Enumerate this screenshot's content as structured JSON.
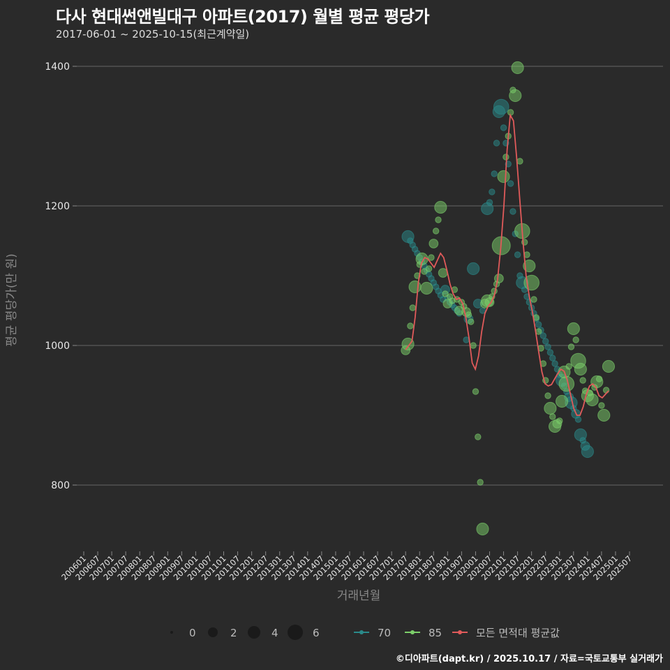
{
  "header": {
    "title": "다사 현대썬앤빌대구 아파트(2017) 월별 평균 평당가",
    "subtitle": "2017-06-01 ~ 2025-10-15(최근계약일)"
  },
  "footer": {
    "credit": "©디아파트(dapt.kr) / 2025.10.17 / 자료=국토교통부 실거래가"
  },
  "colors": {
    "background": "#2a2a2a",
    "grid": "#5a5a5a",
    "s70": "#2a8a8a",
    "s85": "#7ccf6a",
    "avg": "#e05a5a"
  },
  "chart_data": {
    "type": "scatter",
    "title": "다사 현대썬앤빌대구 아파트(2017) 월별 평균 평당가",
    "subtitle": "2017-06-01 ~ 2025-10-15(최근계약일)",
    "xlabel": "거래년월",
    "ylabel": "평균 평당가(만 원)",
    "ylim": [
      700,
      1430
    ],
    "yticks": [
      800,
      1000,
      1200,
      1400
    ],
    "grid": true,
    "xticks": [
      "200601",
      "200607",
      "200701",
      "200707",
      "200801",
      "200807",
      "200901",
      "200907",
      "201001",
      "201007",
      "201101",
      "201107",
      "201201",
      "201207",
      "201301",
      "201307",
      "201401",
      "201407",
      "201501",
      "201507",
      "201601",
      "201607",
      "201701",
      "201707",
      "201801",
      "201807",
      "201901",
      "201907",
      "202001",
      "202007",
      "202101",
      "202107",
      "202201",
      "202207",
      "202301",
      "202307",
      "202401",
      "202407",
      "202501",
      "202507"
    ],
    "legend": {
      "size": {
        "title": "",
        "values": [
          "0",
          "2",
          "4",
          "6"
        ]
      },
      "color": [
        {
          "name": "70",
          "color": "#2a8a8a"
        },
        {
          "name": "85",
          "color": "#7ccf6a"
        },
        {
          "name": "모든 면적대 평균값",
          "color": "#e05a5a"
        }
      ],
      "position": "bottom"
    },
    "series": [
      {
        "name": "70",
        "type": "scatter",
        "points": [
          [
            138,
            1156,
            3
          ],
          [
            139,
            1150,
            1
          ],
          [
            140,
            1144,
            1
          ],
          [
            141,
            1138,
            1
          ],
          [
            142,
            1132,
            1
          ],
          [
            143,
            1126,
            1
          ],
          [
            144,
            1120,
            1
          ],
          [
            145,
            1114,
            1
          ],
          [
            146,
            1108,
            1
          ],
          [
            147,
            1102,
            1
          ],
          [
            148,
            1096,
            1
          ],
          [
            149,
            1090,
            1
          ],
          [
            150,
            1084,
            1
          ],
          [
            151,
            1078,
            1
          ],
          [
            152,
            1072,
            1
          ],
          [
            153,
            1066,
            1
          ],
          [
            154,
            1080,
            2
          ],
          [
            155,
            1068,
            1
          ],
          [
            156,
            1062,
            1
          ],
          [
            157,
            1058,
            1
          ],
          [
            158,
            1054,
            1
          ],
          [
            159,
            1050,
            1
          ],
          [
            160,
            1046,
            1
          ],
          [
            163,
            1008,
            1
          ],
          [
            164,
            1038,
            2
          ],
          [
            166,
            1110,
            3
          ],
          [
            168,
            1060,
            2
          ],
          [
            170,
            1050,
            1
          ],
          [
            172,
            1196,
            3
          ],
          [
            173,
            1205,
            1
          ],
          [
            174,
            1220,
            1
          ],
          [
            175,
            1246,
            1
          ],
          [
            176,
            1290,
            1
          ],
          [
            177,
            1335,
            3
          ],
          [
            178,
            1342,
            4
          ],
          [
            179,
            1312,
            1
          ],
          [
            180,
            1290,
            1
          ],
          [
            181,
            1260,
            1
          ],
          [
            182,
            1232,
            1
          ],
          [
            183,
            1192,
            1
          ],
          [
            184,
            1160,
            1
          ],
          [
            185,
            1130,
            1
          ],
          [
            186,
            1100,
            1
          ],
          [
            187,
            1090,
            3
          ],
          [
            188,
            1080,
            1
          ],
          [
            189,
            1070,
            1
          ],
          [
            190,
            1062,
            1
          ],
          [
            191,
            1054,
            1
          ],
          [
            192,
            1046,
            1
          ],
          [
            193,
            1038,
            1
          ],
          [
            194,
            1030,
            1
          ],
          [
            195,
            1022,
            1
          ],
          [
            196,
            1014,
            1
          ],
          [
            197,
            1006,
            1
          ],
          [
            198,
            998,
            1
          ],
          [
            199,
            990,
            1
          ],
          [
            200,
            982,
            1
          ],
          [
            201,
            974,
            1
          ],
          [
            202,
            966,
            1
          ],
          [
            203,
            958,
            1
          ],
          [
            204,
            950,
            3
          ],
          [
            205,
            942,
            1
          ],
          [
            206,
            934,
            1
          ],
          [
            207,
            926,
            2
          ],
          [
            208,
            918,
            3
          ],
          [
            209,
            910,
            1
          ],
          [
            210,
            902,
            2
          ],
          [
            211,
            894,
            1
          ],
          [
            212,
            872,
            3
          ],
          [
            213,
            864,
            1
          ],
          [
            214,
            856,
            2
          ],
          [
            215,
            848,
            3
          ]
        ]
      },
      {
        "name": "85",
        "type": "scatter",
        "points": [
          [
            137,
            993,
            2
          ],
          [
            138,
            1002,
            3
          ],
          [
            139,
            1028,
            1
          ],
          [
            140,
            1054,
            1
          ],
          [
            141,
            1084,
            3
          ],
          [
            142,
            1100,
            1
          ],
          [
            143,
            1116,
            1
          ],
          [
            144,
            1124,
            3
          ],
          [
            145,
            1106,
            1
          ],
          [
            146,
            1082,
            3
          ],
          [
            147,
            1110,
            1
          ],
          [
            148,
            1126,
            1
          ],
          [
            149,
            1146,
            2
          ],
          [
            150,
            1164,
            1
          ],
          [
            151,
            1180,
            1
          ],
          [
            152,
            1198,
            3
          ],
          [
            153,
            1104,
            2
          ],
          [
            154,
            1074,
            1
          ],
          [
            155,
            1060,
            2
          ],
          [
            156,
            1070,
            1
          ],
          [
            157,
            1064,
            1
          ],
          [
            158,
            1080,
            1
          ],
          [
            159,
            1066,
            1
          ],
          [
            160,
            1050,
            2
          ],
          [
            161,
            1062,
            1
          ],
          [
            162,
            1056,
            1
          ],
          [
            163,
            1048,
            2
          ],
          [
            164,
            1044,
            1
          ],
          [
            165,
            1034,
            1
          ],
          [
            166,
            1000,
            1
          ],
          [
            167,
            934,
            1
          ],
          [
            168,
            869,
            1
          ],
          [
            169,
            804,
            1
          ],
          [
            170,
            737,
            3
          ],
          [
            171,
            1060,
            2
          ],
          [
            172,
            1064,
            3
          ],
          [
            173,
            1062,
            2
          ],
          [
            174,
            1070,
            1
          ],
          [
            175,
            1078,
            1
          ],
          [
            176,
            1088,
            1
          ],
          [
            177,
            1096,
            2
          ],
          [
            178,
            1143,
            5
          ],
          [
            179,
            1242,
            3
          ],
          [
            180,
            1270,
            1
          ],
          [
            181,
            1300,
            1
          ],
          [
            182,
            1334,
            1
          ],
          [
            183,
            1366,
            1
          ],
          [
            184,
            1358,
            3
          ],
          [
            185,
            1398,
            3
          ],
          [
            186,
            1264,
            1
          ],
          [
            187,
            1164,
            4
          ],
          [
            188,
            1148,
            1
          ],
          [
            189,
            1130,
            1
          ],
          [
            190,
            1114,
            3
          ],
          [
            191,
            1090,
            4
          ],
          [
            192,
            1066,
            1
          ],
          [
            193,
            1040,
            1
          ],
          [
            194,
            1020,
            1
          ],
          [
            195,
            996,
            1
          ],
          [
            196,
            974,
            1
          ],
          [
            197,
            950,
            1
          ],
          [
            198,
            928,
            1
          ],
          [
            199,
            910,
            3
          ],
          [
            200,
            898,
            1
          ],
          [
            201,
            884,
            3
          ],
          [
            202,
            888,
            2
          ],
          [
            203,
            892,
            1
          ],
          [
            204,
            920,
            3
          ],
          [
            205,
            962,
            3
          ],
          [
            206,
            945,
            4
          ],
          [
            207,
            970,
            1
          ],
          [
            208,
            998,
            1
          ],
          [
            209,
            1024,
            3
          ],
          [
            210,
            1008,
            1
          ],
          [
            211,
            978,
            4
          ],
          [
            212,
            966,
            3
          ],
          [
            213,
            950,
            1
          ],
          [
            214,
            935,
            1
          ],
          [
            215,
            928,
            3
          ],
          [
            216,
            932,
            1
          ],
          [
            217,
            922,
            3
          ],
          [
            218,
            940,
            1
          ],
          [
            219,
            948,
            3
          ],
          [
            220,
            952,
            1
          ],
          [
            221,
            914,
            1
          ],
          [
            222,
            900,
            3
          ],
          [
            223,
            936,
            1
          ],
          [
            224,
            970,
            3
          ]
        ]
      },
      {
        "name": "모든 면적대 평균값",
        "type": "line",
        "points": [
          [
            137,
            994
          ],
          [
            138,
            1000
          ],
          [
            139,
            1006
          ],
          [
            140,
            1040
          ],
          [
            141,
            1090
          ],
          [
            142,
            1118
          ],
          [
            143,
            1126
          ],
          [
            144,
            1124
          ],
          [
            145,
            1118
          ],
          [
            146,
            1112
          ],
          [
            147,
            1122
          ],
          [
            148,
            1132
          ],
          [
            149,
            1126
          ],
          [
            150,
            1108
          ],
          [
            151,
            1088
          ],
          [
            152,
            1074
          ],
          [
            153,
            1066
          ],
          [
            154,
            1068
          ],
          [
            155,
            1060
          ],
          [
            156,
            1040
          ],
          [
            157,
            1010
          ],
          [
            158,
            975
          ],
          [
            159,
            966
          ],
          [
            160,
            985
          ],
          [
            161,
            1020
          ],
          [
            162,
            1046
          ],
          [
            163,
            1056
          ],
          [
            164,
            1062
          ],
          [
            165,
            1072
          ],
          [
            166,
            1094
          ],
          [
            167,
            1140
          ],
          [
            168,
            1200
          ],
          [
            169,
            1280
          ],
          [
            170,
            1330
          ],
          [
            171,
            1322
          ],
          [
            172,
            1270
          ],
          [
            173,
            1210
          ],
          [
            174,
            1150
          ],
          [
            175,
            1100
          ],
          [
            176,
            1070
          ],
          [
            177,
            1048
          ],
          [
            178,
            1020
          ],
          [
            179,
            990
          ],
          [
            180,
            962
          ],
          [
            181,
            945
          ],
          [
            182,
            942
          ],
          [
            183,
            944
          ],
          [
            184,
            952
          ],
          [
            185,
            960
          ],
          [
            186,
            966
          ],
          [
            187,
            963
          ],
          [
            188,
            950
          ],
          [
            189,
            930
          ],
          [
            190,
            910
          ],
          [
            191,
            900
          ],
          [
            192,
            900
          ],
          [
            193,
            912
          ],
          [
            194,
            930
          ],
          [
            195,
            942
          ],
          [
            196,
            945
          ],
          [
            197,
            940
          ],
          [
            198,
            928
          ],
          [
            199,
            925
          ],
          [
            200,
            930
          ],
          [
            201,
            935
          ]
        ]
      }
    ]
  }
}
